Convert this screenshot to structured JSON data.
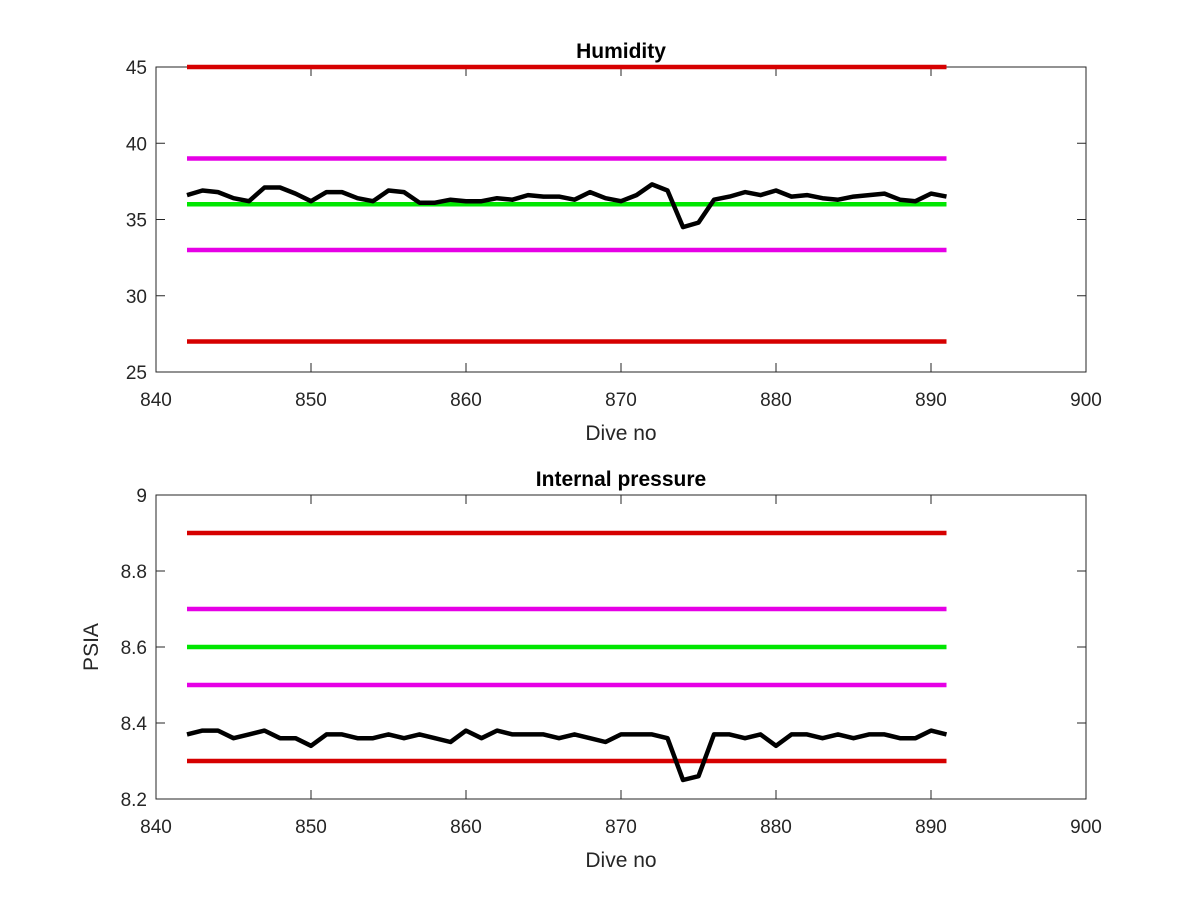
{
  "chart_data": [
    {
      "type": "line",
      "title": "Humidity",
      "xlabel": "Dive no",
      "ylabel": "",
      "xlim": [
        840,
        900
      ],
      "ylim": [
        25,
        45
      ],
      "x_ticks": [
        "840",
        "850",
        "860",
        "870",
        "880",
        "890",
        "900"
      ],
      "y_ticks": [
        "25",
        "30",
        "35",
        "40",
        "45"
      ],
      "grid": false,
      "series": [
        {
          "color": "#d60000",
          "x": [
            842,
            891
          ],
          "values": [
            45,
            45
          ]
        },
        {
          "color": "#e600e6",
          "x": [
            842,
            891
          ],
          "values": [
            39,
            39
          ]
        },
        {
          "color": "#00e600",
          "x": [
            842,
            891
          ],
          "values": [
            36,
            36
          ]
        },
        {
          "color": "#e600e6",
          "x": [
            842,
            891
          ],
          "values": [
            33,
            33
          ]
        },
        {
          "color": "#d60000",
          "x": [
            842,
            891
          ],
          "values": [
            27,
            27
          ]
        },
        {
          "color": "#000000",
          "x": [
            842,
            843,
            844,
            845,
            846,
            847,
            848,
            849,
            850,
            851,
            852,
            853,
            854,
            855,
            856,
            857,
            858,
            859,
            860,
            861,
            862,
            863,
            864,
            865,
            866,
            867,
            868,
            869,
            870,
            871,
            872,
            873,
            874,
            875,
            876,
            877,
            878,
            879,
            880,
            881,
            882,
            883,
            884,
            885,
            886,
            887,
            888,
            889,
            890,
            891
          ],
          "values": [
            36.6,
            36.9,
            36.8,
            36.4,
            36.2,
            37.1,
            37.1,
            36.7,
            36.2,
            36.8,
            36.8,
            36.4,
            36.2,
            36.9,
            36.8,
            36.1,
            36.1,
            36.3,
            36.2,
            36.2,
            36.4,
            36.3,
            36.6,
            36.5,
            36.5,
            36.3,
            36.8,
            36.4,
            36.2,
            36.6,
            37.3,
            36.9,
            34.5,
            34.8,
            36.3,
            36.5,
            36.8,
            36.6,
            36.9,
            36.5,
            36.6,
            36.4,
            36.3,
            36.5,
            36.6,
            36.7,
            36.3,
            36.2,
            36.7,
            36.5
          ]
        }
      ]
    },
    {
      "type": "line",
      "title": "Internal pressure",
      "xlabel": "Dive no",
      "ylabel": "PSIA",
      "xlim": [
        840,
        900
      ],
      "ylim": [
        8.2,
        9
      ],
      "x_ticks": [
        "840",
        "850",
        "860",
        "870",
        "880",
        "890",
        "900"
      ],
      "y_ticks": [
        "8.2",
        "8.4",
        "8.6",
        "8.8",
        "9"
      ],
      "grid": false,
      "series": [
        {
          "color": "#d60000",
          "x": [
            842,
            891
          ],
          "values": [
            8.9,
            8.9
          ]
        },
        {
          "color": "#e600e6",
          "x": [
            842,
            891
          ],
          "values": [
            8.7,
            8.7
          ]
        },
        {
          "color": "#00e600",
          "x": [
            842,
            891
          ],
          "values": [
            8.6,
            8.6
          ]
        },
        {
          "color": "#e600e6",
          "x": [
            842,
            891
          ],
          "values": [
            8.5,
            8.5
          ]
        },
        {
          "color": "#d60000",
          "x": [
            842,
            891
          ],
          "values": [
            8.3,
            8.3
          ]
        },
        {
          "color": "#000000",
          "x": [
            842,
            843,
            844,
            845,
            846,
            847,
            848,
            849,
            850,
            851,
            852,
            853,
            854,
            855,
            856,
            857,
            858,
            859,
            860,
            861,
            862,
            863,
            864,
            865,
            866,
            867,
            868,
            869,
            870,
            871,
            872,
            873,
            874,
            875,
            876,
            877,
            878,
            879,
            880,
            881,
            882,
            883,
            884,
            885,
            886,
            887,
            888,
            889,
            890,
            891
          ],
          "values": [
            8.37,
            8.38,
            8.38,
            8.36,
            8.37,
            8.38,
            8.36,
            8.36,
            8.34,
            8.37,
            8.37,
            8.36,
            8.36,
            8.37,
            8.36,
            8.37,
            8.36,
            8.35,
            8.38,
            8.36,
            8.38,
            8.37,
            8.37,
            8.37,
            8.36,
            8.37,
            8.36,
            8.35,
            8.37,
            8.37,
            8.37,
            8.36,
            8.25,
            8.26,
            8.37,
            8.37,
            8.36,
            8.37,
            8.34,
            8.37,
            8.37,
            8.36,
            8.37,
            8.36,
            8.37,
            8.37,
            8.36,
            8.36,
            8.38,
            8.37
          ]
        }
      ]
    }
  ]
}
